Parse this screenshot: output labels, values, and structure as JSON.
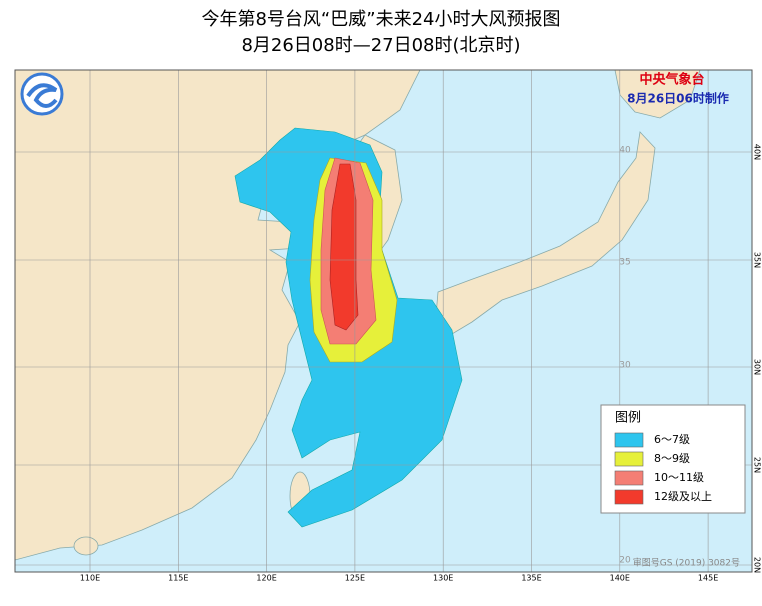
{
  "header": {
    "title": "今年第8号台风“巴威”未来24小时大风预报图",
    "subtitle": "8月26日08时—27日08时(北京时)"
  },
  "agency": {
    "name": "中央气象台",
    "issued": "8月26日06时制作"
  },
  "legend": {
    "title": "图例",
    "items": [
      {
        "label": "6～7级",
        "color": "#2ec5ee"
      },
      {
        "label": "8～9级",
        "color": "#e6f03a"
      },
      {
        "label": "10～11级",
        "color": "#f47e74"
      },
      {
        "label": "12级及以上",
        "color": "#f23a2c"
      }
    ]
  },
  "axes": {
    "lon": [
      "110E",
      "115E",
      "120E",
      "125E",
      "130E",
      "135E",
      "140E",
      "145E"
    ],
    "lat": [
      "40N",
      "35N",
      "30N",
      "25N",
      "20N"
    ],
    "inner_lat": [
      "40",
      "35",
      "30",
      "20"
    ]
  },
  "footer": "审图号GS (2019) 3082号"
}
